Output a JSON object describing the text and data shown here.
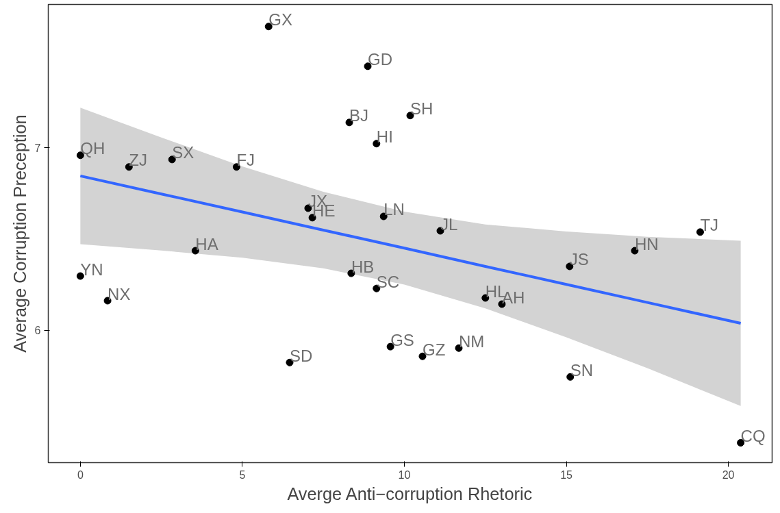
{
  "chart_data": {
    "type": "scatter",
    "xlabel": "Averge Anti−corruption Rhetoric",
    "ylabel": "Average Corruption Preception",
    "xlim": [
      -0.99,
      21.35
    ],
    "ylim": [
      5.274,
      7.786
    ],
    "xticks": [
      0,
      5,
      10,
      15,
      20
    ],
    "yticks": [
      6,
      7
    ],
    "grid": false,
    "series": [
      {
        "marker": "circle",
        "color": "#000000",
        "x": [
          5.81,
          8.87,
          8.3,
          10.18,
          9.14,
          0,
          1.5,
          2.83,
          4.82,
          7.03,
          7.16,
          9.36,
          11.11,
          19.13,
          17.11,
          3.55,
          15.1,
          0,
          8.36,
          9.14,
          12.5,
          13.01,
          0.84,
          9.57,
          10.56,
          11.68,
          6.46,
          15.12,
          20.38
        ],
        "values": [
          7.665,
          7.447,
          7.139,
          7.177,
          7.023,
          6.959,
          6.895,
          6.936,
          6.895,
          6.669,
          6.617,
          6.624,
          6.545,
          6.538,
          6.436,
          6.436,
          6.35,
          6.297,
          6.312,
          6.229,
          6.177,
          6.143,
          6.162,
          5.91,
          5.857,
          5.902,
          5.823,
          5.744,
          5.383
        ]
      },
      {
        "type": "line",
        "color": "#3366ff",
        "x": [
          0,
          2.5,
          5,
          7.5,
          10,
          12.5,
          15,
          17.5,
          20.38
        ],
        "values": [
          6.846,
          6.747,
          6.648,
          6.549,
          6.45,
          6.35,
          6.251,
          6.152,
          6.038
        ],
        "lower": [
          6.472,
          6.437,
          6.398,
          6.339,
          6.25,
          6.12,
          5.961,
          5.792,
          5.585
        ],
        "upper": [
          7.22,
          7.057,
          6.898,
          6.759,
          6.65,
          6.58,
          6.541,
          6.512,
          6.491
        ]
      }
    ],
    "annotations": [
      {
        "text": "GX",
        "x": 5.81,
        "y": 7.665
      },
      {
        "text": "GD",
        "x": 8.87,
        "y": 7.447
      },
      {
        "text": "BJ",
        "x": 8.3,
        "y": 7.139
      },
      {
        "text": "SH",
        "x": 10.18,
        "y": 7.177
      },
      {
        "text": "HI",
        "x": 9.14,
        "y": 7.023
      },
      {
        "text": "QH",
        "x": 0,
        "y": 6.959
      },
      {
        "text": "ZJ",
        "x": 1.5,
        "y": 6.895
      },
      {
        "text": "SX",
        "x": 2.83,
        "y": 6.936
      },
      {
        "text": "FJ",
        "x": 4.82,
        "y": 6.895
      },
      {
        "text": "JX",
        "x": 7.03,
        "y": 6.669
      },
      {
        "text": "HE",
        "x": 7.16,
        "y": 6.617
      },
      {
        "text": "LN",
        "x": 9.36,
        "y": 6.624
      },
      {
        "text": "JL",
        "x": 11.11,
        "y": 6.545
      },
      {
        "text": "TJ",
        "x": 19.13,
        "y": 6.538
      },
      {
        "text": "HN",
        "x": 17.11,
        "y": 6.436
      },
      {
        "text": "HA",
        "x": 3.55,
        "y": 6.436
      },
      {
        "text": "JS",
        "x": 15.1,
        "y": 6.35
      },
      {
        "text": "YN",
        "x": 0,
        "y": 6.297
      },
      {
        "text": "HB",
        "x": 8.36,
        "y": 6.312
      },
      {
        "text": "SC",
        "x": 9.14,
        "y": 6.229
      },
      {
        "text": "HL",
        "x": 12.5,
        "y": 6.177
      },
      {
        "text": "AH",
        "x": 13.01,
        "y": 6.143
      },
      {
        "text": "NX",
        "x": 0.84,
        "y": 6.162
      },
      {
        "text": "GS",
        "x": 9.57,
        "y": 5.91
      },
      {
        "text": "GZ",
        "x": 10.56,
        "y": 5.857
      },
      {
        "text": "NM",
        "x": 11.68,
        "y": 5.902
      },
      {
        "text": "SD",
        "x": 6.46,
        "y": 5.823
      },
      {
        "text": "SN",
        "x": 15.12,
        "y": 5.744
      },
      {
        "text": "CQ",
        "x": 20.38,
        "y": 5.383
      }
    ]
  }
}
